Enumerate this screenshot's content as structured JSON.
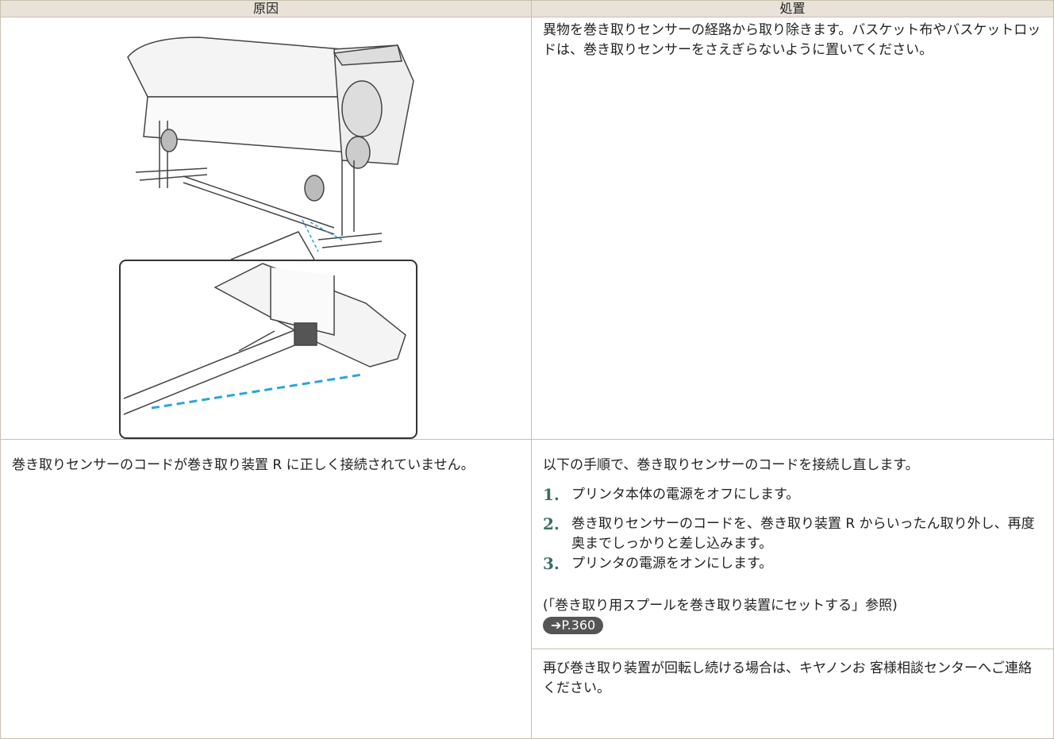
{
  "table": {
    "header": [
      "原因",
      "処置"
    ],
    "rows": [
      {
        "action": "異物を巻き取りセンサーの経路から取り除きます。バスケット布やバスケットロッドは、巻き取りセンサーをさえぎらないように置いてください。"
      },
      {
        "cause": "巻き取りセンサーのコードが巻き取り装置 R に正しく接続されていません。",
        "action": {
          "intro": "以下の手順で、巻き取りセンサーのコードを接続し直します。",
          "steps": [
            {
              "number": "1.",
              "text": "プリンタ本体の電源をオフにします。"
            },
            {
              "number": "2.",
              "text": "巻き取りセンサーのコードを、巻き取り装置 R からいったん取り外し、再度奥までしっかりと差し込みます。"
            },
            {
              "number": "3.",
              "text": "プリンタの電源をオンにします。"
            }
          ],
          "reference": "(「巻き取り用スプールを巻き取り装置にセットする」参照)",
          "link": "➔P.360"
        },
        "note": "再び巻き取り装置が回転し続ける場合は、キヤノンお 客様相談センターへご連絡ください。"
      }
    ]
  }
}
